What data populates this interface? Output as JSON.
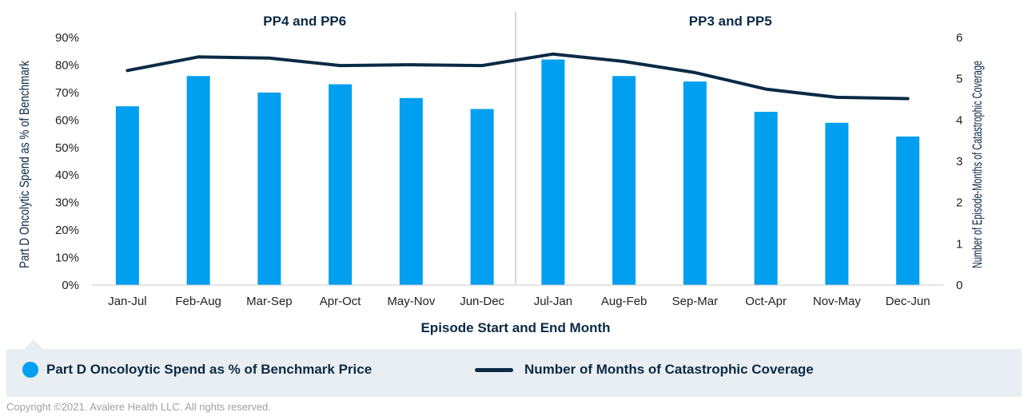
{
  "chart_data": {
    "type": "bar",
    "xlabel": "Episode Start and End Month",
    "ylabel_left": "Part D Oncolytic Spend as % of Benchmark",
    "ylabel_right": "Number of Episode-Months of Catastrophic Coverage",
    "categories": [
      "Jan-Jul",
      "Feb-Aug",
      "Mar-Sep",
      "Apr-Oct",
      "May-Nov",
      "Jun-Dec",
      "Jul-Jan",
      "Aug-Feb",
      "Sep-Mar",
      "Oct-Apr",
      "Nov-May",
      "Dec-Jun"
    ],
    "groups": [
      {
        "label": "PP4 and PP6",
        "from": 0,
        "to": 5
      },
      {
        "label": "PP3 and PP5",
        "from": 6,
        "to": 11
      }
    ],
    "y_left": {
      "min": 0,
      "max": 0.9,
      "ticks": [
        "0%",
        "10%",
        "20%",
        "30%",
        "40%",
        "50%",
        "60%",
        "70%",
        "80%",
        "90%"
      ]
    },
    "y_right": {
      "min": 0,
      "max": 6,
      "ticks": [
        "0",
        "1",
        "2",
        "3",
        "4",
        "5",
        "6"
      ]
    },
    "series": [
      {
        "name": "Part D Oncoloytic Spend as % of Benchmark Price",
        "type": "bar",
        "axis": "left",
        "color": "#009fef",
        "values": [
          0.65,
          0.76,
          0.7,
          0.73,
          0.68,
          0.64,
          0.82,
          0.76,
          0.74,
          0.63,
          0.59,
          0.54
        ]
      },
      {
        "name": "Number of Months of Catastrophic Coverage",
        "type": "line",
        "axis": "right",
        "color": "#0b2a45",
        "values": [
          5.2,
          5.53,
          5.5,
          5.32,
          5.34,
          5.32,
          5.6,
          5.42,
          5.15,
          4.75,
          4.55,
          4.52
        ]
      }
    ],
    "grid": false,
    "legend": "bottom"
  },
  "copyright": "Copyright ©2021. Avalere Health LLC. All rights reserved."
}
